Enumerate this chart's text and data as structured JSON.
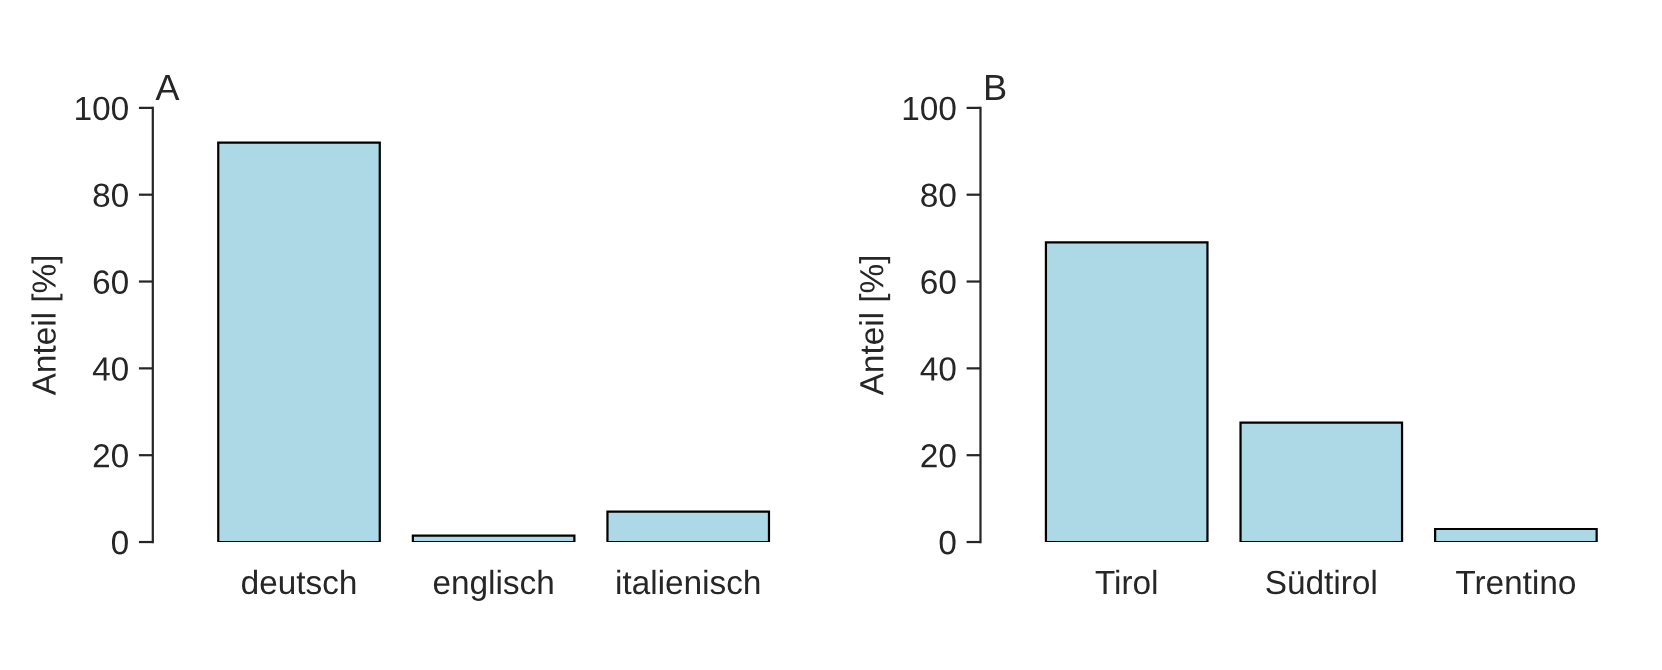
{
  "chart_data": [
    {
      "type": "bar",
      "title": "A",
      "ylabel": "Anteil [%]",
      "categories": [
        "deutsch",
        "englisch",
        "italienisch"
      ],
      "values": [
        92,
        1.5,
        7
      ],
      "color": "#add8e6",
      "ylim": [
        0,
        100
      ],
      "yticks": [
        0,
        20,
        40,
        60,
        80,
        100
      ],
      "grid": false
    },
    {
      "type": "bar",
      "title": "B",
      "ylabel": "Anteil [%]",
      "categories": [
        "Tirol",
        "Südtirol",
        "Trentino"
      ],
      "values": [
        69,
        27.5,
        3
      ],
      "color": "#add8e6",
      "ylim": [
        0,
        100
      ],
      "yticks": [
        0,
        20,
        40,
        60,
        80,
        100
      ],
      "grid": false
    }
  ]
}
